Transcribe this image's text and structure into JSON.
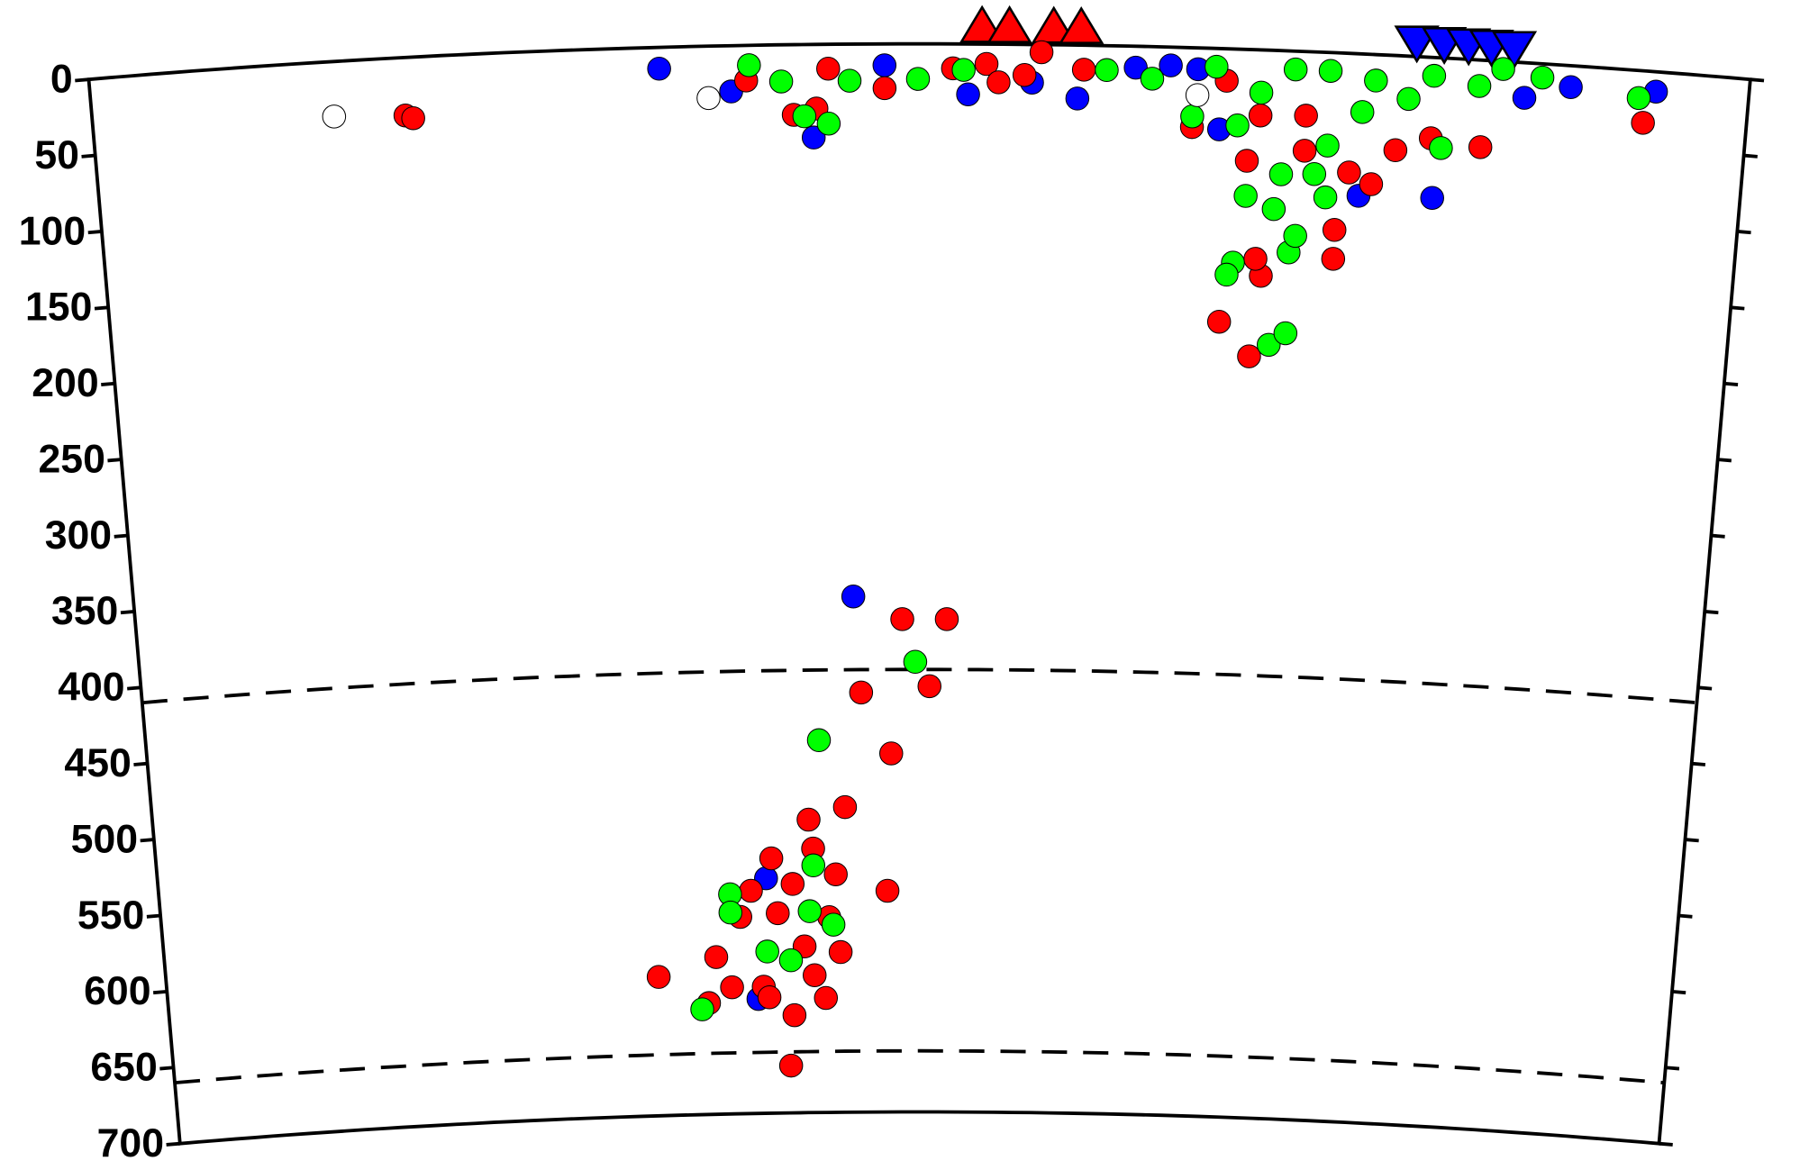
{
  "chart_data": {
    "type": "scatter",
    "xlim": [
      0,
      1090
    ],
    "ylim": [
      0,
      700
    ],
    "y_inverted": true,
    "yticks": [
      0,
      50,
      100,
      150,
      200,
      250,
      300,
      350,
      400,
      450,
      500,
      550,
      600,
      650,
      700
    ],
    "reference_depths": [
      410,
      660
    ],
    "series": [
      {
        "color": "#0000ff",
        "x": [
          374,
          421,
          522,
          577,
          619,
          649,
          687,
          710,
          728,
          743,
          837,
          886,
          943,
          973,
          1029,
          499,
          435,
          475,
          428
        ],
        "values": [
          14,
          30,
          14,
          33,
          25,
          35,
          14,
          12,
          14,
          53,
          93,
          92,
          23,
          14,
          13,
          362,
          546,
          61,
          625
        ]
      },
      {
        "color": "#ff0000",
        "x": [
          206,
          211,
          431,
          462,
          477,
          485,
          522,
          567,
          589,
          597,
          614,
          625,
          653,
          725,
          747,
          770,
          762,
          774,
          770,
          747,
          768,
          822,
          822,
          800,
          845,
          860,
          883,
          916,
          1022,
          800,
          830,
          533,
          564,
          504,
          552,
          525,
          492,
          466,
          522,
          485,
          439,
          469,
          454,
          416,
          398,
          462,
          356,
          392,
          409,
          432,
          454,
          477,
          488,
          451,
          436,
          469,
          424,
          443,
          480
        ],
        "values": [
          38,
          40,
          23,
          46,
          42,
          16,
          29,
          16,
          13,
          25,
          20,
          5,
          16,
          52,
          21,
          43,
          73,
          148,
          137,
          179,
          201,
          135,
          116,
          65,
          85,
          62,
          53,
          57,
          34,
          42,
          78,
          377,
          377,
          425,
          421,
          465,
          500,
          508,
          555,
          544,
          533,
          527,
          550,
          571,
          597,
          591,
          609,
          627,
          617,
          617,
          636,
          625,
          595,
          669,
          624,
          610,
          554,
          569,
          572
        ]
      },
      {
        "color": "#00ff00",
        "x": [
          433,
          454,
          469,
          485,
          499,
          544,
          574,
          668,
          698,
          725,
          740,
          755,
          755,
          751,
          781,
          792,
          792,
          796,
          762,
          781,
          807,
          815,
          770,
          792,
          815,
          837,
          845,
          867,
          883,
          890,
          913,
          928,
          954,
          1018,
          815,
          785,
          542,
          474,
          469,
          409,
          435,
          452,
          483,
          466,
          387,
          409
        ],
        "values": [
          13,
          24,
          47,
          52,
          24,
          23,
          17,
          16,
          21,
          45,
          12,
          50,
          140,
          148,
          193,
          185,
          132,
          121,
          96,
          104,
          80,
          95,
          28,
          12,
          12,
          38,
          17,
          28,
          12,
          59,
          17,
          5,
          9,
          18,
          61,
          81,
          405,
          456,
          538,
          556,
          594,
          600,
          577,
          568,
          631,
          568
        ]
      },
      {
        "color": "#ffffff",
        "x": [
          159,
          406,
          728
        ],
        "values": [
          36,
          34,
          31
        ]
      }
    ],
    "surface_markers": [
      {
        "symbol": "triangle-up",
        "color": "#ff0000",
        "x": [
          586,
          604,
          633,
          651
        ]
      },
      {
        "symbol": "triangle-down",
        "color": "#0000ff",
        "x": [
          871,
          889,
          905,
          920,
          935
        ]
      }
    ]
  }
}
